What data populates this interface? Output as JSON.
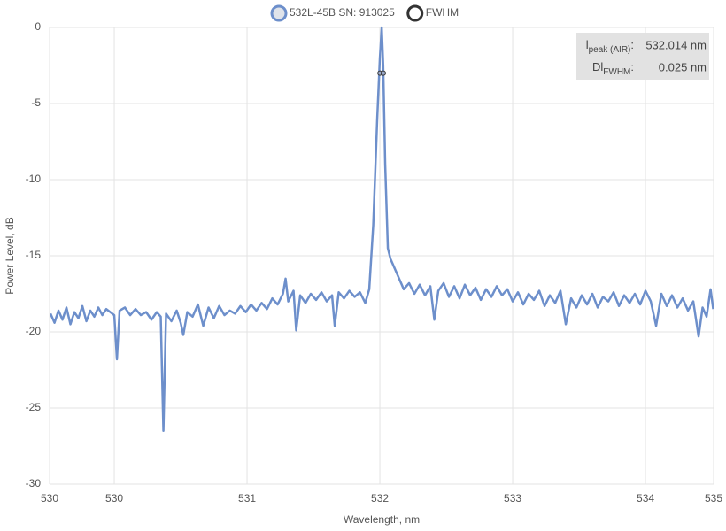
{
  "chart_data": {
    "type": "line",
    "x_label": "Wavelength, nm",
    "y_label": "Power Level, dB",
    "xlim": [
      529.513,
      534.513
    ],
    "ylim": [
      -30,
      0
    ],
    "xticks": [
      {
        "value": 529.513,
        "label": "530"
      },
      530,
      531,
      532,
      533,
      534,
      {
        "value": 534.513,
        "label": "535"
      }
    ],
    "yticks": [
      0,
      -5,
      -10,
      -15,
      -20,
      -25,
      -30
    ],
    "grid": true,
    "legend": "top",
    "series": [
      {
        "name": "532L-45B SN: 913025",
        "color": "#6d8fcb",
        "x": [
          529.52,
          529.55,
          529.58,
          529.61,
          529.64,
          529.67,
          529.7,
          529.73,
          529.76,
          529.79,
          529.82,
          529.85,
          529.88,
          529.91,
          529.94,
          529.97,
          530.0,
          530.02,
          530.04,
          530.08,
          530.12,
          530.16,
          530.2,
          530.24,
          530.28,
          530.32,
          530.35,
          530.37,
          530.39,
          530.43,
          530.47,
          530.5,
          530.52,
          530.55,
          530.59,
          530.63,
          530.67,
          530.71,
          530.75,
          530.79,
          530.83,
          530.87,
          530.91,
          530.95,
          530.99,
          531.03,
          531.07,
          531.11,
          531.15,
          531.19,
          531.23,
          531.27,
          531.29,
          531.31,
          531.35,
          531.37,
          531.4,
          531.44,
          531.48,
          531.52,
          531.56,
          531.6,
          531.64,
          531.66,
          531.69,
          531.73,
          531.77,
          531.81,
          531.85,
          531.89,
          531.92,
          531.95,
          531.98,
          532.0,
          532.014,
          532.025,
          532.04,
          532.06,
          532.08,
          532.11,
          532.14,
          532.18,
          532.22,
          532.26,
          532.3,
          532.34,
          532.38,
          532.41,
          532.44,
          532.48,
          532.52,
          532.56,
          532.6,
          532.64,
          532.68,
          532.72,
          532.76,
          532.8,
          532.84,
          532.88,
          532.92,
          532.96,
          533.0,
          533.04,
          533.08,
          533.12,
          533.16,
          533.2,
          533.24,
          533.28,
          533.32,
          533.36,
          533.4,
          533.44,
          533.48,
          533.52,
          533.56,
          533.6,
          533.64,
          533.68,
          533.72,
          533.76,
          533.8,
          533.84,
          533.88,
          533.92,
          533.96,
          534.0,
          534.04,
          534.08,
          534.12,
          534.16,
          534.2,
          534.24,
          534.28,
          534.32,
          534.36,
          534.4,
          534.43,
          534.46,
          534.49,
          534.51
        ],
        "values": [
          -18.8,
          -19.4,
          -18.6,
          -19.2,
          -18.4,
          -19.5,
          -18.7,
          -19.1,
          -18.3,
          -19.3,
          -18.6,
          -19.0,
          -18.4,
          -18.9,
          -18.5,
          -18.7,
          -18.9,
          -21.8,
          -18.6,
          -18.4,
          -18.9,
          -18.5,
          -18.9,
          -18.7,
          -19.2,
          -18.7,
          -19.0,
          -26.5,
          -18.8,
          -19.3,
          -18.6,
          -19.4,
          -20.2,
          -18.7,
          -19.0,
          -18.2,
          -19.6,
          -18.4,
          -19.1,
          -18.3,
          -18.9,
          -18.6,
          -18.8,
          -18.3,
          -18.7,
          -18.2,
          -18.6,
          -18.1,
          -18.5,
          -17.8,
          -18.2,
          -17.5,
          -16.5,
          -18.0,
          -17.3,
          -19.9,
          -17.6,
          -18.1,
          -17.5,
          -17.9,
          -17.4,
          -18.0,
          -17.6,
          -19.6,
          -17.4,
          -17.8,
          -17.3,
          -17.7,
          -17.4,
          -18.1,
          -17.2,
          -13.0,
          -6.0,
          -2.0,
          0,
          -2.5,
          -9.0,
          -14.5,
          -15.2,
          -15.8,
          -16.4,
          -17.2,
          -16.8,
          -17.5,
          -16.9,
          -17.6,
          -17.0,
          -19.2,
          -17.3,
          -16.8,
          -17.7,
          -17.0,
          -17.8,
          -16.9,
          -17.6,
          -17.1,
          -17.9,
          -17.2,
          -17.7,
          -17.0,
          -17.6,
          -17.2,
          -18.0,
          -17.4,
          -18.2,
          -17.5,
          -17.9,
          -17.3,
          -18.3,
          -17.6,
          -18.1,
          -17.3,
          -19.5,
          -17.8,
          -18.4,
          -17.6,
          -18.2,
          -17.5,
          -18.4,
          -17.7,
          -18.0,
          -17.4,
          -18.3,
          -17.6,
          -18.1,
          -17.5,
          -18.2,
          -17.3,
          -18.0,
          -19.6,
          -17.5,
          -18.3,
          -17.6,
          -18.4,
          -17.8,
          -18.6,
          -18.0,
          -20.3,
          -18.4,
          -19.0,
          -17.2,
          -18.5
        ]
      },
      {
        "name": "FWHM",
        "color": "#333333",
        "markers": true,
        "x": [
          532.001,
          532.026
        ],
        "values": [
          -3,
          -3
        ]
      }
    ],
    "annotation": [
      {
        "symbol": "l",
        "subscript": "peak (AIR)",
        "separator": ":",
        "value": "532.014 nm"
      },
      {
        "symbol": "Dl",
        "subscript": "FWHM",
        "separator": ":",
        "value": "0.025 nm"
      }
    ]
  }
}
